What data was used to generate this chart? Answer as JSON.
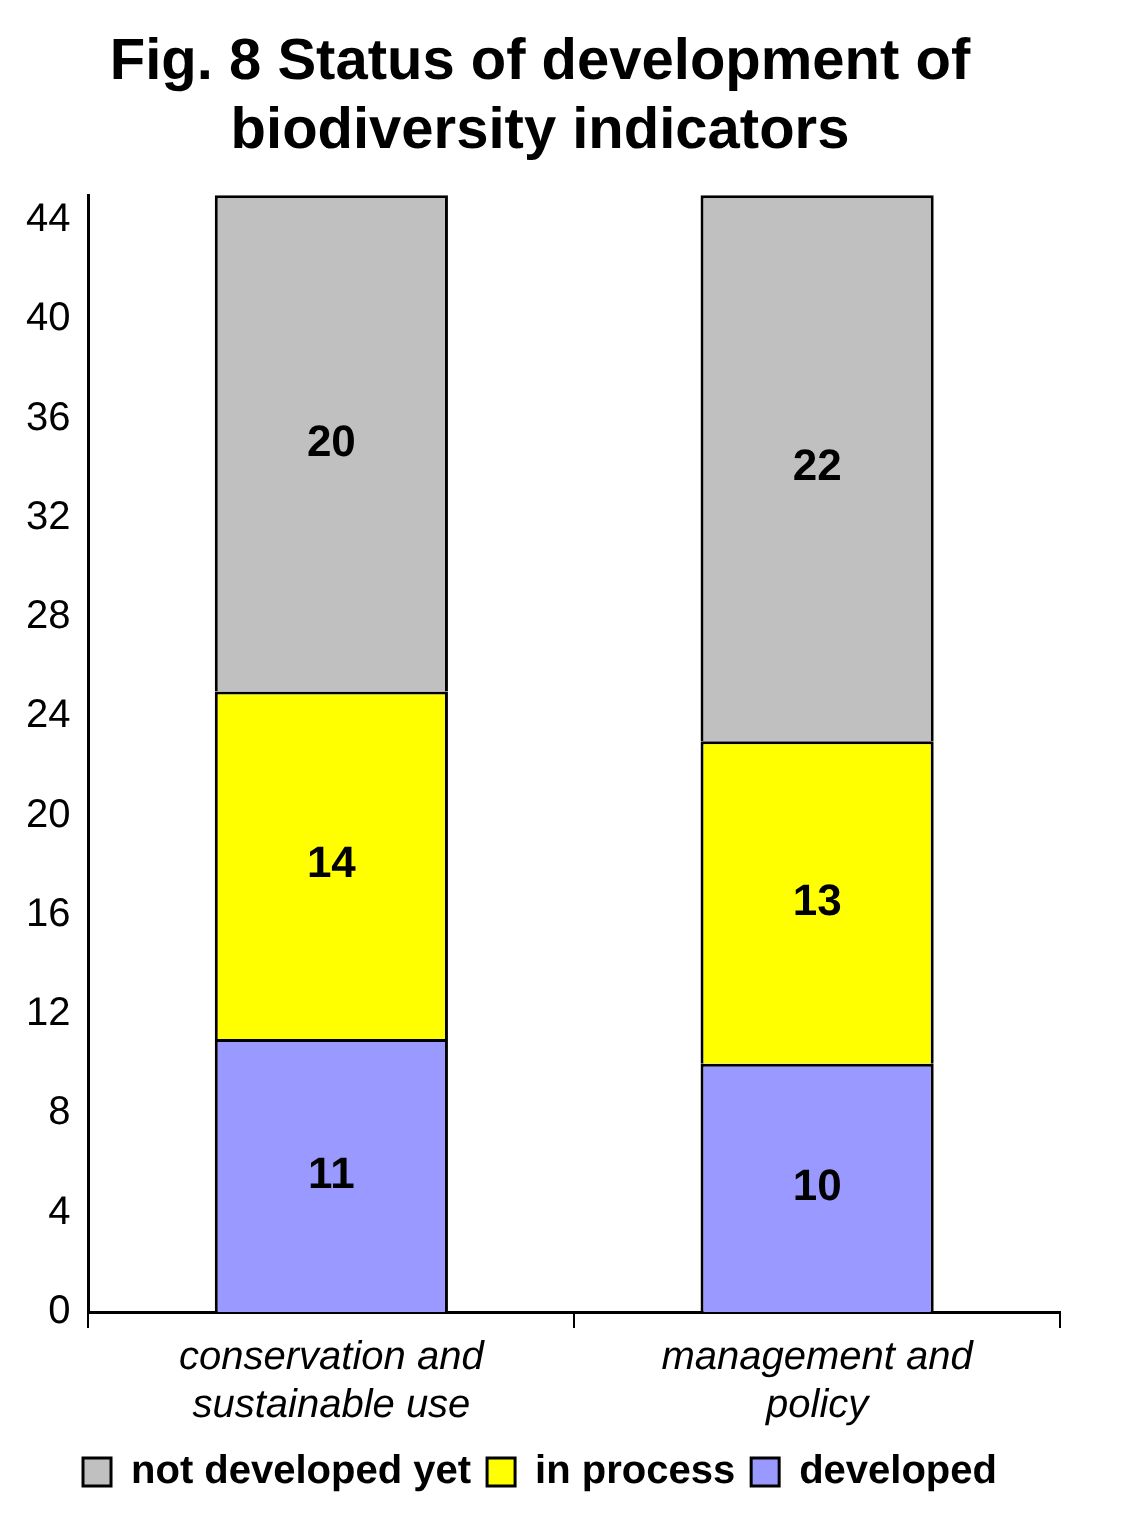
{
  "chart_data": {
    "type": "bar",
    "title": "Fig. 8 Status of development of biodiversity indicators",
    "categories": [
      "conservation and sustainable use",
      "management and policy"
    ],
    "stacked": true,
    "data_labels": true,
    "grid": false,
    "legend": "bottom",
    "ylim": [
      0,
      45
    ],
    "yticks": [
      0,
      4,
      8,
      12,
      16,
      20,
      24,
      28,
      32,
      36,
      40,
      44
    ],
    "series": [
      {
        "name": "developed",
        "color": "#9999ff",
        "values": [
          11,
          10
        ]
      },
      {
        "name": "in process",
        "color": "#ffff00",
        "values": [
          14,
          13
        ]
      },
      {
        "name": "not developed yet",
        "color": "#c0c0c0",
        "values": [
          20,
          22
        ]
      }
    ]
  }
}
